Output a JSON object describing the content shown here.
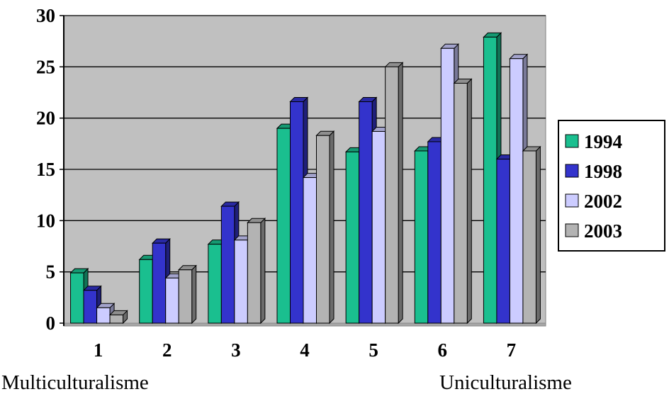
{
  "chart_data": {
    "type": "bar",
    "categories": [
      "1",
      "2",
      "3",
      "4",
      "5",
      "6",
      "7"
    ],
    "series": [
      {
        "name": "1994",
        "color": "#1abf8f",
        "values": [
          4.9,
          6.2,
          7.7,
          19.0,
          16.7,
          16.8,
          27.9
        ]
      },
      {
        "name": "1998",
        "color": "#3333cc",
        "values": [
          3.2,
          7.8,
          11.4,
          21.6,
          21.6,
          17.7,
          16.0
        ]
      },
      {
        "name": "2002",
        "color": "#ccccff",
        "values": [
          1.5,
          4.4,
          8.1,
          14.2,
          18.7,
          26.8,
          25.8
        ]
      },
      {
        "name": "2003",
        "color": "#b3b3b3",
        "values": [
          0.8,
          5.2,
          9.8,
          18.3,
          25.0,
          23.4,
          16.8
        ]
      }
    ],
    "ylim": [
      0,
      30
    ],
    "yticks": [
      "0",
      "5",
      "10",
      "15",
      "20",
      "25",
      "30"
    ],
    "grid": true,
    "legend_position": "right",
    "plot_background": "#c0c0c0"
  },
  "footer": {
    "left_label": "Multiculturalisme",
    "right_label": "Uniculturalisme"
  }
}
